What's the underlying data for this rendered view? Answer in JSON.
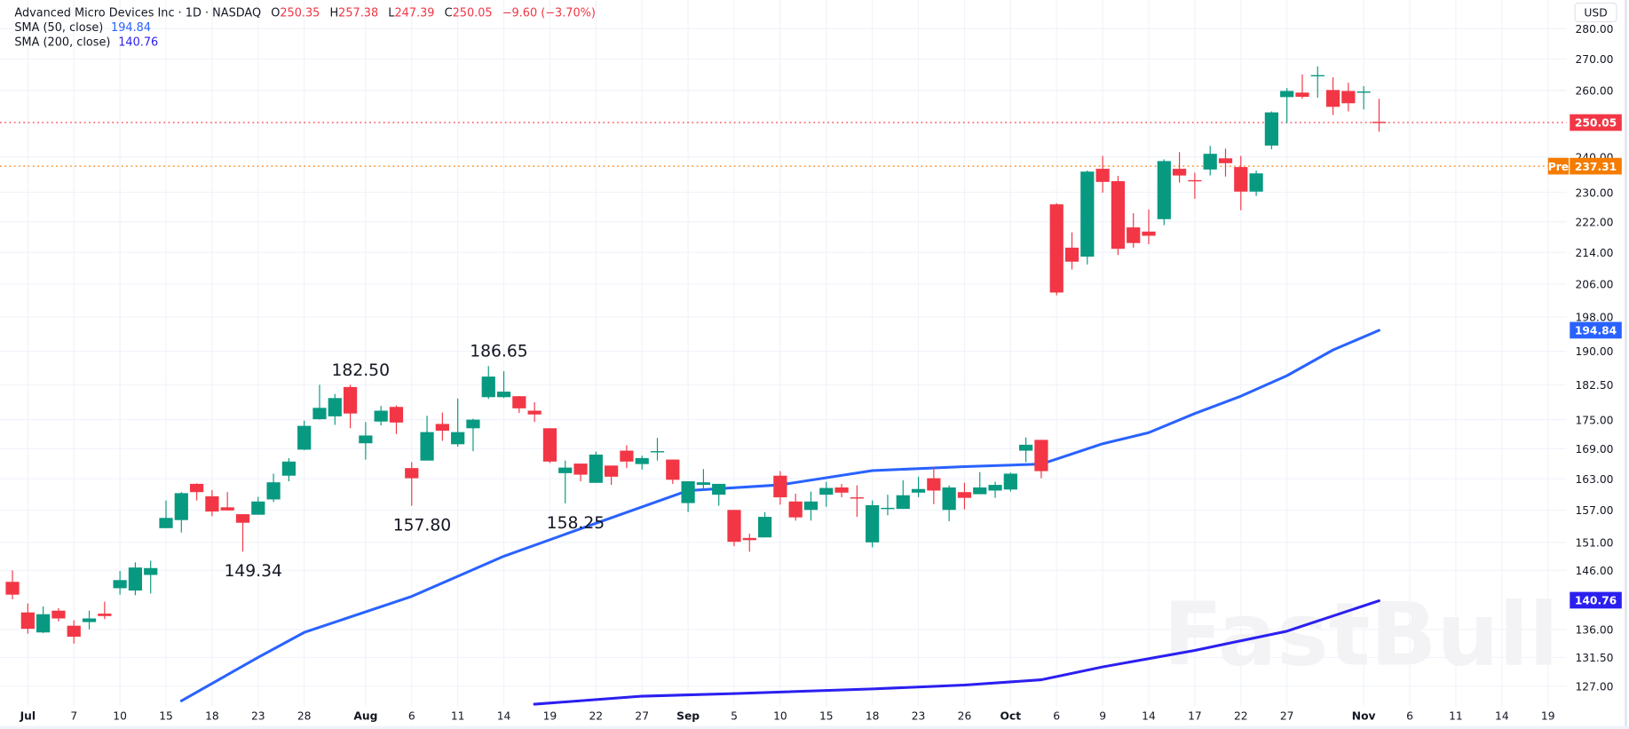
{
  "header": {
    "title": "Advanced Micro Devices Inc · 1D · NASDAQ",
    "open_label": "O",
    "open": "250.35",
    "high_label": "H",
    "high": "257.38",
    "low_label": "L",
    "low": "247.39",
    "close_label": "C",
    "close": "250.05",
    "change": "−9.60 (−3.70%)"
  },
  "indicators": [
    {
      "label": "SMA (50, close)",
      "value": "194.84",
      "color": "#2962ff"
    },
    {
      "label": "SMA (200, close)",
      "value": "140.76",
      "color": "#2b1ff0"
    }
  ],
  "price_axis": {
    "currency": "USD",
    "scale": "log",
    "ticks": [
      "280.00",
      "270.00",
      "260.00",
      "240.00",
      "230.00",
      "222.00",
      "214.00",
      "206.00",
      "198.00",
      "190.00",
      "182.50",
      "175.00",
      "169.00",
      "163.00",
      "157.00",
      "151.00",
      "146.00",
      "136.00",
      "131.50",
      "127.00"
    ]
  },
  "badges": {
    "last_price": "250.05",
    "pre_label": "Pre",
    "pre_price": "237.31",
    "sma50": "194.84",
    "sma200": "140.76"
  },
  "colors": {
    "up": "#089981",
    "down": "#f23645",
    "sma50": "#2962ff",
    "sma200": "#2b1ff0",
    "pre": "#f57c00",
    "grid": "#f0f3fa"
  },
  "watermark": "FastBull",
  "chart_data": {
    "type": "candlestick",
    "title": "Advanced Micro Devices Inc · 1D · NASDAQ",
    "y_scale": "log",
    "ylim": [
      124.2,
      289.8
    ],
    "grid": true,
    "fields": [
      "date",
      "open",
      "high",
      "low",
      "close"
    ],
    "candles": [
      [
        "Jun 30",
        144,
        146,
        141,
        141.8
      ],
      [
        "Jul 1",
        138.8,
        140.3,
        135.3,
        136.1
      ],
      [
        "Jul 2",
        135.5,
        139.8,
        135.4,
        138.5
      ],
      [
        "Jul 3",
        139.1,
        139.5,
        137.3,
        137.8
      ],
      [
        "Jul 7",
        136.6,
        137.5,
        133.7,
        134.8
      ],
      [
        "Jul 8",
        137.2,
        139.1,
        136,
        137.8
      ],
      [
        "Jul 9",
        138.6,
        140.6,
        137.7,
        138.2
      ],
      [
        "Jul 10",
        142.9,
        145.9,
        141.8,
        144.3
      ],
      [
        "Jul 11",
        142.5,
        147.4,
        141.7,
        146.5
      ],
      [
        "Jul 14",
        145.2,
        147.7,
        142,
        146.4
      ],
      [
        "Jul 15",
        153.6,
        158.8,
        153.6,
        155.5
      ],
      [
        "Jul 16",
        155.1,
        160.4,
        152.8,
        160.2
      ],
      [
        "Jul 17",
        162,
        162.1,
        158.8,
        160.4
      ],
      [
        "Jul 18",
        159.6,
        160.8,
        155.8,
        156.7
      ],
      [
        "Jul 21",
        157.5,
        160.4,
        156.9,
        156.9
      ],
      [
        "Jul 22",
        156.2,
        156.2,
        149.34,
        154.6
      ],
      [
        "Jul 23",
        156.1,
        159.5,
        156.1,
        158.6
      ],
      [
        "Jul 24",
        159,
        164,
        158.5,
        162.3
      ],
      [
        "Jul 25",
        163.6,
        167.1,
        162.5,
        166.4
      ],
      [
        "Jul 28",
        168.8,
        174.8,
        168.7,
        173.7
      ],
      [
        "Jul 29",
        175.1,
        182.5,
        175,
        177.5
      ],
      [
        "Jul 30",
        175.7,
        180.5,
        173.9,
        179.6
      ],
      [
        "Jul 31",
        182,
        182.5,
        173.2,
        176.3
      ],
      [
        "Aug 1",
        170.1,
        174.5,
        166.8,
        171.7
      ],
      [
        "Aug 4",
        174.6,
        177.9,
        173.8,
        176.9
      ],
      [
        "Aug 5",
        177.7,
        178,
        172,
        174.4
      ],
      [
        "Aug 6",
        165.1,
        166.3,
        157.8,
        163.1
      ],
      [
        "Aug 7",
        166.6,
        175.8,
        166.6,
        172.4
      ],
      [
        "Aug 8",
        174.1,
        176.5,
        170.6,
        172.7
      ],
      [
        "Aug 11",
        169.9,
        179.5,
        169.4,
        172.4
      ],
      [
        "Aug 12",
        173.2,
        175.2,
        168.5,
        175
      ],
      [
        "Aug 13",
        179.8,
        186.65,
        179.4,
        184.3
      ],
      [
        "Aug 14",
        179.8,
        185.5,
        179.6,
        181
      ],
      [
        "Aug 15",
        180,
        180,
        176.4,
        177.4
      ],
      [
        "Aug 18",
        176.9,
        178.7,
        174.5,
        176.1
      ],
      [
        "Aug 19",
        173.2,
        173.2,
        166.1,
        166.4
      ],
      [
        "Aug 20",
        164.1,
        166.6,
        158.25,
        165.2
      ],
      [
        "Aug 21",
        166,
        166,
        162.5,
        163.8
      ],
      [
        "Aug 22",
        162.2,
        168.4,
        162.2,
        167.8
      ],
      [
        "Aug 25",
        165.6,
        165.6,
        161.8,
        163.4
      ],
      [
        "Aug 26",
        168.6,
        169.7,
        165.1,
        166.4
      ],
      [
        "Aug 27",
        165.9,
        167.6,
        164.8,
        167.1
      ],
      [
        "Aug 28",
        168.3,
        171.2,
        166.6,
        168.5
      ],
      [
        "Aug 29",
        166.8,
        166.8,
        162,
        162.8
      ],
      [
        "Sep 2",
        158.3,
        162.5,
        156.6,
        162.5
      ],
      [
        "Sep 3",
        161.8,
        164.9,
        160.8,
        162.3
      ],
      [
        "Sep 4",
        159.9,
        162,
        157.8,
        162
      ],
      [
        "Sep 5",
        157,
        157,
        150.3,
        151.1
      ],
      [
        "Sep 8",
        151.8,
        152.6,
        149.3,
        151.4
      ],
      [
        "Sep 9",
        151.9,
        156.6,
        151.9,
        155.7
      ],
      [
        "Sep 10",
        163.6,
        164.5,
        158,
        159.4
      ],
      [
        "Sep 11",
        158.6,
        160.1,
        155,
        155.6
      ],
      [
        "Sep 12",
        157,
        160.5,
        155,
        158.6
      ],
      [
        "Sep 15",
        159.9,
        162.4,
        157.6,
        161.2
      ],
      [
        "Sep 16",
        161.3,
        162,
        159.4,
        160.3
      ],
      [
        "Sep 17",
        159.4,
        161.7,
        155.7,
        159.3
      ],
      [
        "Sep 18",
        151,
        158.8,
        150.1,
        157.9
      ],
      [
        "Sep 19",
        157.2,
        159.9,
        156,
        157.4
      ],
      [
        "Sep 22",
        157.2,
        162.7,
        157.2,
        159.8
      ],
      [
        "Sep 23",
        160.3,
        163.4,
        159.4,
        161
      ],
      [
        "Sep 24",
        163.1,
        165.3,
        158.1,
        160.7
      ],
      [
        "Sep 25",
        157,
        161.7,
        154.9,
        161.3
      ],
      [
        "Sep 26",
        160.4,
        162.2,
        157.1,
        159.3
      ],
      [
        "Sep 29",
        160,
        164.3,
        160,
        161.3
      ],
      [
        "Sep 30",
        160.7,
        162.4,
        159.3,
        161.8
      ],
      [
        "Oct 1",
        160.9,
        164.2,
        160.5,
        164
      ],
      [
        "Oct 2",
        168.6,
        171.3,
        166.3,
        169.8
      ],
      [
        "Oct 3",
        170.8,
        170.8,
        163.1,
        164.5
      ],
      [
        "Oct 6",
        226.7,
        227,
        203.2,
        203.9
      ],
      [
        "Oct 7",
        215.2,
        219.2,
        209.6,
        211.6
      ],
      [
        "Oct 8",
        212.9,
        236.1,
        210.9,
        235.8
      ],
      [
        "Oct 9",
        236.6,
        240.3,
        229.9,
        232.9
      ],
      [
        "Oct 10",
        233.1,
        234.6,
        213.3,
        214.9
      ],
      [
        "Oct 13",
        220.5,
        224.3,
        215.2,
        216.4
      ],
      [
        "Oct 14",
        219.4,
        225.3,
        216.1,
        218.3
      ],
      [
        "Oct 15",
        222.7,
        239.3,
        221.1,
        238.8
      ],
      [
        "Oct 16",
        236.6,
        241.4,
        232.7,
        234.7
      ],
      [
        "Oct 17",
        233.4,
        235.5,
        228.2,
        233.2
      ],
      [
        "Oct 20",
        236.4,
        243.2,
        234.7,
        240.9
      ],
      [
        "Oct 21",
        239.6,
        242.4,
        234.4,
        238.2
      ],
      [
        "Oct 22",
        237.1,
        240.3,
        225.1,
        230.2
      ],
      [
        "Oct 23",
        230.2,
        236.1,
        229,
        235.3
      ],
      [
        "Oct 24",
        243.3,
        253.5,
        242.2,
        253.2
      ],
      [
        "Oct 27",
        257.9,
        260.7,
        250,
        259.8
      ],
      [
        "Oct 28",
        259.3,
        265,
        257.4,
        258
      ],
      [
        "Oct 29",
        264.6,
        267.6,
        257.7,
        264.8
      ],
      [
        "Oct 30",
        260.1,
        264.1,
        252.4,
        254.9
      ],
      [
        "Oct 31",
        259.8,
        262.4,
        253.5,
        256
      ],
      [
        "Nov 3",
        259.4,
        261.3,
        254.1,
        259.65
      ],
      [
        "Nov 4",
        250.35,
        257.38,
        247.39,
        250.05
      ]
    ],
    "sma50": [
      [
        "Jul 16",
        124.8
      ],
      [
        "Jul 23",
        131.5
      ],
      [
        "Jul 28",
        135.5
      ],
      [
        "Aug 6",
        141.5
      ],
      [
        "Aug 14",
        148.5
      ],
      [
        "Aug 22",
        154.5
      ],
      [
        "Sep 2",
        160.7
      ],
      [
        "Sep 10",
        161.8
      ],
      [
        "Sep 18",
        164.6
      ],
      [
        "Sep 26",
        165.4
      ],
      [
        "Oct 3",
        165.9
      ],
      [
        "Oct 9",
        170
      ],
      [
        "Oct 14",
        172.3
      ],
      [
        "Oct 17",
        176.3
      ],
      [
        "Oct 22",
        180
      ],
      [
        "Oct 27",
        184.5
      ],
      [
        "Oct 30",
        190.3
      ],
      [
        "Nov 4",
        194.84
      ]
    ],
    "sma200": [
      [
        "Aug 18",
        124.3
      ],
      [
        "Aug 27",
        125.5
      ],
      [
        "Sep 5",
        125.9
      ],
      [
        "Sep 18",
        126.6
      ],
      [
        "Sep 26",
        127.2
      ],
      [
        "Oct 3",
        128
      ],
      [
        "Oct 9",
        130
      ],
      [
        "Oct 17",
        132.6
      ],
      [
        "Oct 27",
        135.7
      ],
      [
        "Nov 4",
        140.76
      ]
    ],
    "x_ticks": [
      {
        "label": "Jul",
        "date": "Jul 1"
      },
      {
        "label": "7",
        "date": "Jul 7"
      },
      {
        "label": "10",
        "date": "Jul 10"
      },
      {
        "label": "15",
        "date": "Jul 15"
      },
      {
        "label": "18",
        "date": "Jul 18"
      },
      {
        "label": "23",
        "date": "Jul 23"
      },
      {
        "label": "28",
        "date": "Jul 28"
      },
      {
        "label": "Aug",
        "date": "Aug 1"
      },
      {
        "label": "6",
        "date": "Aug 6"
      },
      {
        "label": "11",
        "date": "Aug 11"
      },
      {
        "label": "14",
        "date": "Aug 14"
      },
      {
        "label": "19",
        "date": "Aug 19"
      },
      {
        "label": "22",
        "date": "Aug 22"
      },
      {
        "label": "27",
        "date": "Aug 27"
      },
      {
        "label": "Sep",
        "date": "Sep 2"
      },
      {
        "label": "5",
        "date": "Sep 5"
      },
      {
        "label": "10",
        "date": "Sep 10"
      },
      {
        "label": "15",
        "date": "Sep 15"
      },
      {
        "label": "18",
        "date": "Sep 18"
      },
      {
        "label": "23",
        "date": "Sep 23"
      },
      {
        "label": "26",
        "date": "Sep 26"
      },
      {
        "label": "Oct",
        "date": "Oct 1"
      },
      {
        "label": "6",
        "date": "Oct 6"
      },
      {
        "label": "9",
        "date": "Oct 9"
      },
      {
        "label": "14",
        "date": "Oct 14"
      },
      {
        "label": "17",
        "date": "Oct 17"
      },
      {
        "label": "22",
        "date": "Oct 22"
      },
      {
        "label": "27",
        "date": "Oct 27"
      },
      {
        "label": "Nov",
        "date": "Nov 3"
      },
      {
        "label": "6",
        "date": "Nov 6"
      },
      {
        "label": "11",
        "date": "Nov 11"
      },
      {
        "label": "14",
        "date": "Nov 14"
      },
      {
        "label": "19",
        "date": "Nov 19"
      }
    ],
    "annotations": [
      {
        "date": "Jul 22",
        "label": "149.34",
        "position": "below"
      },
      {
        "date": "Jul 31",
        "label": "182.50",
        "position": "above"
      },
      {
        "date": "Aug 6",
        "label": "157.80",
        "position": "below"
      },
      {
        "date": "Aug 13",
        "label": "186.65",
        "position": "above"
      },
      {
        "date": "Aug 20",
        "label": "158.25",
        "position": "below"
      }
    ]
  }
}
